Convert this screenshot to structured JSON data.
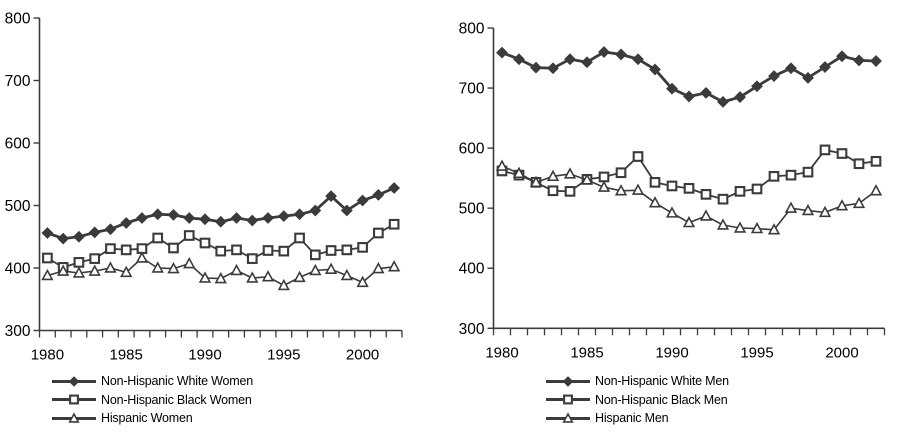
{
  "colors": {
    "line": "#3b3b3b",
    "text": "#000000",
    "background": "#ffffff"
  },
  "chart_data": [
    {
      "type": "line",
      "panel": "women",
      "x": [
        1980,
        1981,
        1982,
        1983,
        1984,
        1985,
        1986,
        1987,
        1988,
        1989,
        1990,
        1991,
        1992,
        1993,
        1994,
        1995,
        1996,
        1997,
        1998,
        1999,
        2000,
        2001,
        2002
      ],
      "ylim": [
        300,
        800
      ],
      "yticks": [
        300,
        400,
        500,
        600,
        700,
        800
      ],
      "xtick_labels": [
        1980,
        1985,
        1990,
        1995,
        2000
      ],
      "grid": false,
      "legend_position": "bottom-left",
      "series": [
        {
          "name": "Non-Hispanic White Women",
          "marker": "diamond",
          "fill": "solid",
          "values": [
            456,
            447,
            450,
            457,
            462,
            472,
            480,
            486,
            485,
            480,
            478,
            474,
            480,
            476,
            480,
            483,
            486,
            492,
            515,
            492,
            508,
            517,
            528
          ]
        },
        {
          "name": "Non-Hispanic Black Women",
          "marker": "square",
          "fill": "hollow",
          "values": [
            416,
            401,
            409,
            415,
            431,
            429,
            431,
            448,
            432,
            452,
            440,
            427,
            429,
            415,
            428,
            427,
            448,
            421,
            428,
            429,
            433,
            456,
            470
          ]
        },
        {
          "name": "Hispanic Women",
          "marker": "triangle",
          "fill": "hollow",
          "values": [
            388,
            395,
            392,
            395,
            400,
            393,
            416,
            400,
            399,
            407,
            384,
            383,
            396,
            384,
            386,
            372,
            385,
            396,
            398,
            388,
            377,
            399,
            402
          ]
        }
      ]
    },
    {
      "type": "line",
      "panel": "men",
      "x": [
        1980,
        1981,
        1982,
        1983,
        1984,
        1985,
        1986,
        1987,
        1988,
        1989,
        1990,
        1991,
        1992,
        1993,
        1994,
        1995,
        1996,
        1997,
        1998,
        1999,
        2000,
        2001,
        2002
      ],
      "ylim": [
        300,
        800
      ],
      "yticks": [
        300,
        400,
        500,
        600,
        700,
        800
      ],
      "xtick_labels": [
        1980,
        1985,
        1990,
        1995,
        2000
      ],
      "grid": false,
      "legend_position": "bottom-left",
      "series": [
        {
          "name": "Non-Hispanic White Men",
          "marker": "diamond",
          "fill": "solid",
          "values": [
            759,
            748,
            734,
            733,
            748,
            743,
            760,
            756,
            748,
            731,
            699,
            686,
            692,
            677,
            685,
            703,
            720,
            733,
            717,
            735,
            753,
            746,
            745
          ]
        },
        {
          "name": "Non-Hispanic Black Men",
          "marker": "square",
          "fill": "hollow",
          "values": [
            562,
            555,
            543,
            529,
            528,
            548,
            552,
            559,
            586,
            543,
            537,
            533,
            523,
            515,
            528,
            532,
            553,
            555,
            560,
            597,
            591,
            574,
            578
          ]
        },
        {
          "name": "Hispanic Men",
          "marker": "triangle",
          "fill": "hollow",
          "values": [
            570,
            558,
            543,
            553,
            557,
            547,
            535,
            529,
            530,
            509,
            492,
            476,
            487,
            472,
            467,
            466,
            464,
            500,
            496,
            493,
            504,
            508,
            529
          ]
        }
      ]
    }
  ]
}
